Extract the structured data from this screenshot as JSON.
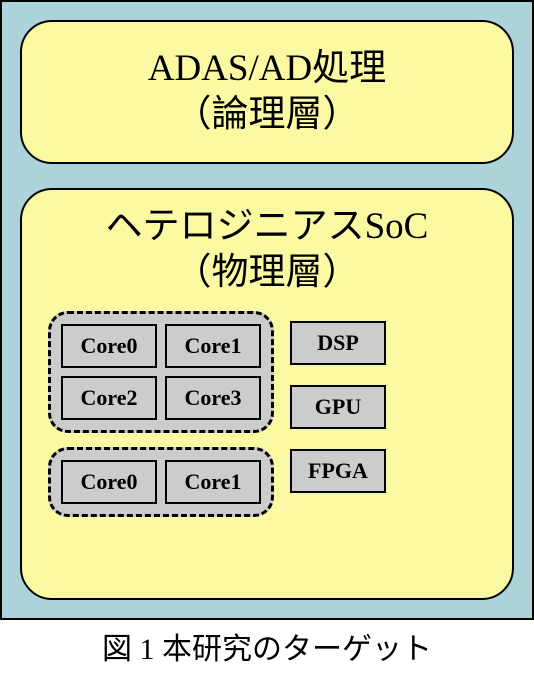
{
  "colors": {
    "outer_bg": "#abd3d9",
    "layer_bg": "#fbfaa2",
    "unit_bg": "#cccccc",
    "cluster_bg": "#cccccc",
    "border": "#000000",
    "text": "#000000"
  },
  "logic_layer": {
    "title_line1": "ADAS/AD処理",
    "title_line2": "（論理層）"
  },
  "physical_layer": {
    "title_line1": "ヘテロジニアスSoC",
    "title_line2": "（物理層）",
    "cluster1": {
      "cores": [
        "Core0",
        "Core1",
        "Core2",
        "Core3"
      ]
    },
    "cluster2": {
      "cores": [
        "Core0",
        "Core1"
      ]
    },
    "peripherals": [
      "DSP",
      "GPU",
      "FPGA"
    ]
  },
  "caption": "図 1 本研究のターゲット",
  "typography": {
    "title_fontsize": 37,
    "unit_fontsize": 22,
    "caption_fontsize": 30
  }
}
